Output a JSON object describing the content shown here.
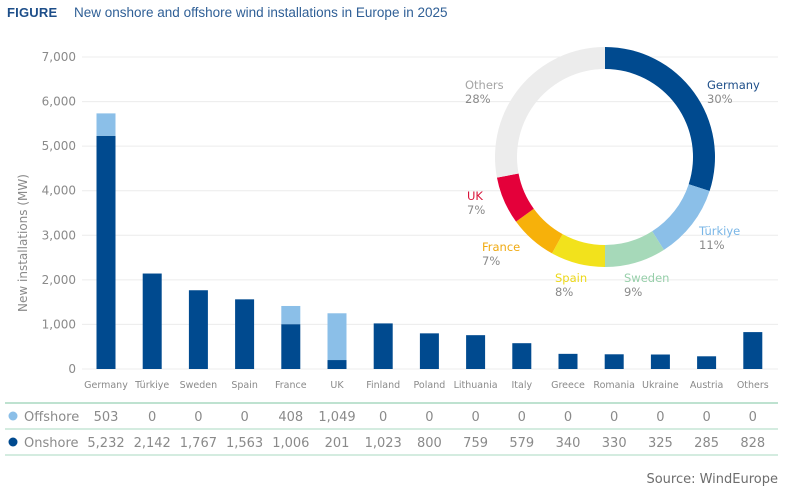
{
  "header": {
    "label": "FIGURE",
    "title": "New onshore and offshore wind installations in Europe in 2025"
  },
  "source": "Source: WindEurope",
  "colors": {
    "onshore": "#004a8f",
    "offshore": "#8bbfe8",
    "grid": "#ececec",
    "table_rule": "#a8d9c0"
  },
  "chart_data": [
    {
      "type": "bar",
      "stacked": true,
      "title": "New onshore and offshore wind installations in Europe in 2025",
      "xlabel": "",
      "ylabel": "New installations (MW)",
      "ylim": [
        0,
        7000
      ],
      "yticks": [
        0,
        1000,
        2000,
        3000,
        4000,
        5000,
        6000,
        7000
      ],
      "ytick_labels": [
        "0",
        "1,000",
        "2,000",
        "3,000",
        "4,000",
        "5,000",
        "6,000",
        "7,000"
      ],
      "grid": true,
      "categories": [
        "Germany",
        "Türkiye",
        "Sweden",
        "Spain",
        "France",
        "UK",
        "Finland",
        "Poland",
        "Lithuania",
        "Italy",
        "Greece",
        "Romania",
        "Ukraine",
        "Austria",
        "Others"
      ],
      "series": [
        {
          "name": "Onshore",
          "color": "#004a8f",
          "values": [
            5232,
            2142,
            1767,
            1563,
            1006,
            201,
            1023,
            800,
            759,
            579,
            340,
            330,
            325,
            285,
            828
          ],
          "labels": [
            "5,232",
            "2,142",
            "1,767",
            "1,563",
            "1,006",
            "201",
            "1,023",
            "800",
            "759",
            "579",
            "340",
            "330",
            "325",
            "285",
            "828"
          ]
        },
        {
          "name": "Offshore",
          "color": "#8bbfe8",
          "values": [
            503,
            0,
            0,
            0,
            408,
            1049,
            0,
            0,
            0,
            0,
            0,
            0,
            0,
            0,
            0
          ],
          "labels": [
            "503",
            "0",
            "0",
            "0",
            "408",
            "1,049",
            "0",
            "0",
            "0",
            "0",
            "0",
            "0",
            "0",
            "0",
            "0"
          ]
        }
      ],
      "legend": "table-below"
    },
    {
      "type": "pie",
      "donut": true,
      "title": "",
      "slices": [
        {
          "label": "Germany",
          "value": 30,
          "pct_label": "30%",
          "color": "#004a8f",
          "label_color": "#1d4e89"
        },
        {
          "label": "Türkiye",
          "value": 11,
          "pct_label": "11%",
          "color": "#8bbfe8",
          "label_color": "#7ab6e6"
        },
        {
          "label": "Sweden",
          "value": 9,
          "pct_label": "9%",
          "color": "#a6d9b9",
          "label_color": "#97cfaa"
        },
        {
          "label": "Spain",
          "value": 8,
          "pct_label": "8%",
          "color": "#f2e21c",
          "label_color": "#ecd81a"
        },
        {
          "label": "France",
          "value": 7,
          "pct_label": "7%",
          "color": "#f7b10a",
          "label_color": "#f0aa12"
        },
        {
          "label": "UK",
          "value": 7,
          "pct_label": "7%",
          "color": "#e4003a",
          "label_color": "#d8143a"
        },
        {
          "label": "Others",
          "value": 28,
          "pct_label": "28%",
          "color": "#ececec",
          "label_color": "#a5a5a5"
        }
      ]
    }
  ],
  "table": {
    "rows": [
      {
        "name": "Offshore",
        "color": "#8bbfe8"
      },
      {
        "name": "Onshore",
        "color": "#004a8f"
      }
    ]
  }
}
